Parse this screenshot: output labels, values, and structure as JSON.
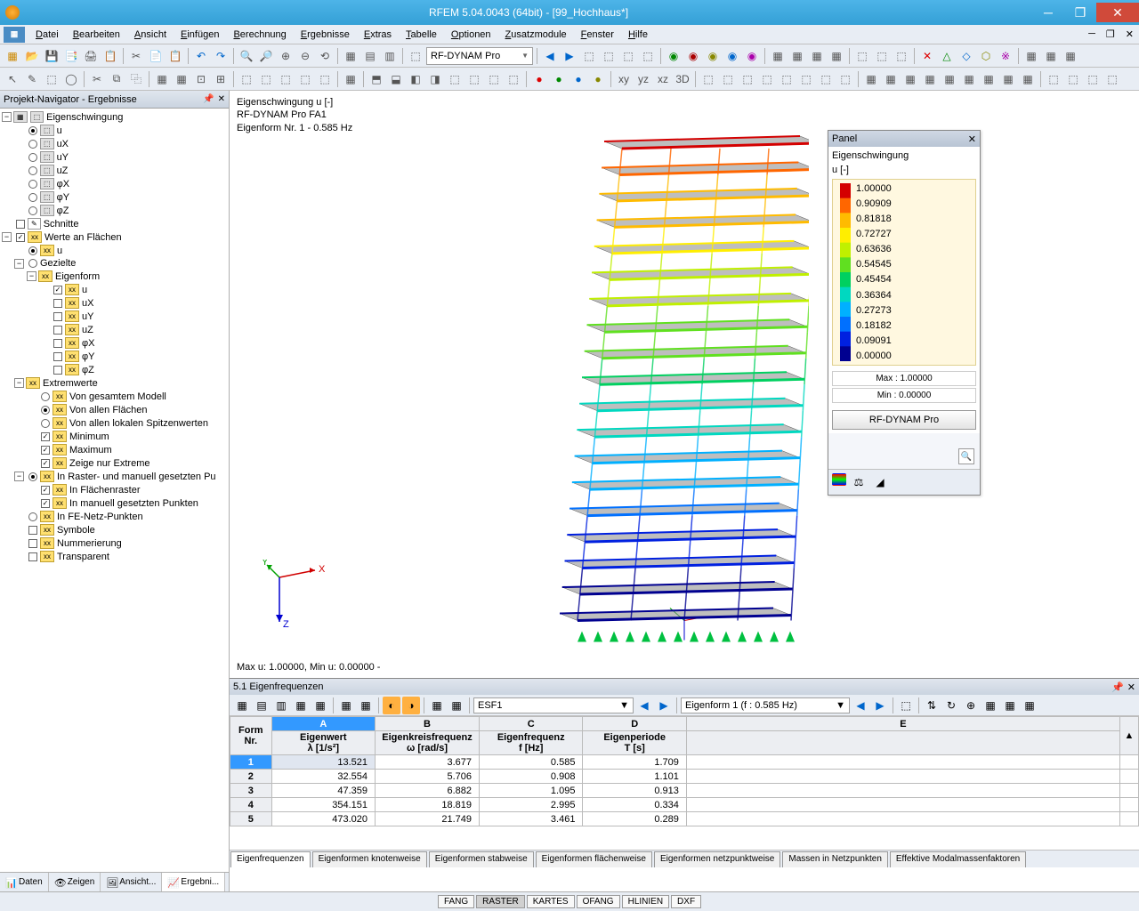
{
  "app": {
    "title": "RFEM 5.04.0043 (64bit) - [99_Hochhaus*]"
  },
  "menu": [
    "Datei",
    "Bearbeiten",
    "Ansicht",
    "Einfügen",
    "Berechnung",
    "Ergebnisse",
    "Extras",
    "Tabelle",
    "Optionen",
    "Zusatzmodule",
    "Fenster",
    "Hilfe"
  ],
  "toolbar_combo": "RF-DYNAM Pro",
  "navigator": {
    "title": "Projekt-Navigator - Ergebnisse",
    "tree": {
      "root": "Eigenschwingung",
      "displacements": [
        "u",
        "uX",
        "uY",
        "uZ",
        "φX",
        "φY",
        "φZ"
      ],
      "schnitte": "Schnitte",
      "werte_flaechen": "Werte an Flächen",
      "gezielte": "Gezielte",
      "eigenform": "Eigenform",
      "ef_items": [
        "u",
        "uX",
        "uY",
        "uZ",
        "φX",
        "φY",
        "φZ"
      ],
      "extremwerte": "Extremwerte",
      "ext_items": [
        "Von gesamtem Modell",
        "Von allen Flächen",
        "Von allen lokalen Spitzenwerten",
        "Minimum",
        "Maximum",
        "Zeige nur Extreme"
      ],
      "raster": "In Raster- und manuell gesetzten Pu",
      "raster_items": [
        "In Flächenraster",
        "In manuell gesetzten Punkten"
      ],
      "fenetz": "In FE-Netz-Punkten",
      "tail": [
        "Symbole",
        "Nummerierung",
        "Transparent"
      ]
    },
    "tabs": [
      "Daten",
      "Zeigen",
      "Ansicht...",
      "Ergebni..."
    ]
  },
  "viewport": {
    "tl": [
      "Eigenschwingung u [-]",
      "RF-DYNAM Pro FA1",
      "Eigenform Nr. 1 - 0.585 Hz"
    ],
    "bl": "Max u: 1.00000, Min u: 0.00000  -",
    "floors": 19
  },
  "panel": {
    "title": "Panel",
    "header": "Eigenschwingung",
    "sub": "u [-]",
    "scale": [
      "1.00000",
      "0.90909",
      "0.81818",
      "0.72727",
      "0.63636",
      "0.54545",
      "0.45454",
      "0.36364",
      "0.27273",
      "0.18182",
      "0.09091",
      "0.00000"
    ],
    "max": "Max  :   1.00000",
    "min": "Min   :   0.00000",
    "button": "RF-DYNAM Pro",
    "colors": [
      "#d40000",
      "#ff6600",
      "#ffbb00",
      "#ffee00",
      "#c0f000",
      "#60e020",
      "#00d060",
      "#00d8c0",
      "#00b0ff",
      "#0070ff",
      "#0020e0",
      "#000090"
    ]
  },
  "dock": {
    "title": "5.1 Eigenfrequenzen",
    "combo1": "ESF1",
    "combo2": "Eigenform 1 (f : 0.585 Hz)",
    "colletters": [
      "A",
      "B",
      "C",
      "D",
      "E"
    ],
    "colheaders_left": "Form\nNr.",
    "headers": [
      {
        "line1": "Eigenwert",
        "line2": "λ [1/s²]"
      },
      {
        "line1": "Eigenkreisfrequenz",
        "line2": "ω [rad/s]"
      },
      {
        "line1": "Eigenfrequenz",
        "line2": "f [Hz]"
      },
      {
        "line1": "Eigenperiode",
        "line2": "T [s]"
      }
    ],
    "rows": [
      {
        "n": "1",
        "vals": [
          "13.521",
          "3.677",
          "0.585",
          "1.709"
        ],
        "sel": true
      },
      {
        "n": "2",
        "vals": [
          "32.554",
          "5.706",
          "0.908",
          "1.101"
        ]
      },
      {
        "n": "3",
        "vals": [
          "47.359",
          "6.882",
          "1.095",
          "0.913"
        ]
      },
      {
        "n": "4",
        "vals": [
          "354.151",
          "18.819",
          "2.995",
          "0.334"
        ]
      },
      {
        "n": "5",
        "vals": [
          "473.020",
          "21.749",
          "3.461",
          "0.289"
        ]
      }
    ],
    "tabs": [
      "Eigenfrequenzen",
      "Eigenformen knotenweise",
      "Eigenformen stabweise",
      "Eigenformen flächenweise",
      "Eigenformen netzpunktweise",
      "Massen in Netzpunkten",
      "Effektive Modalmassenfaktoren"
    ]
  },
  "status": [
    "FANG",
    "RASTER",
    "KARTES",
    "OFANG",
    "HLINIEN",
    "DXF"
  ]
}
